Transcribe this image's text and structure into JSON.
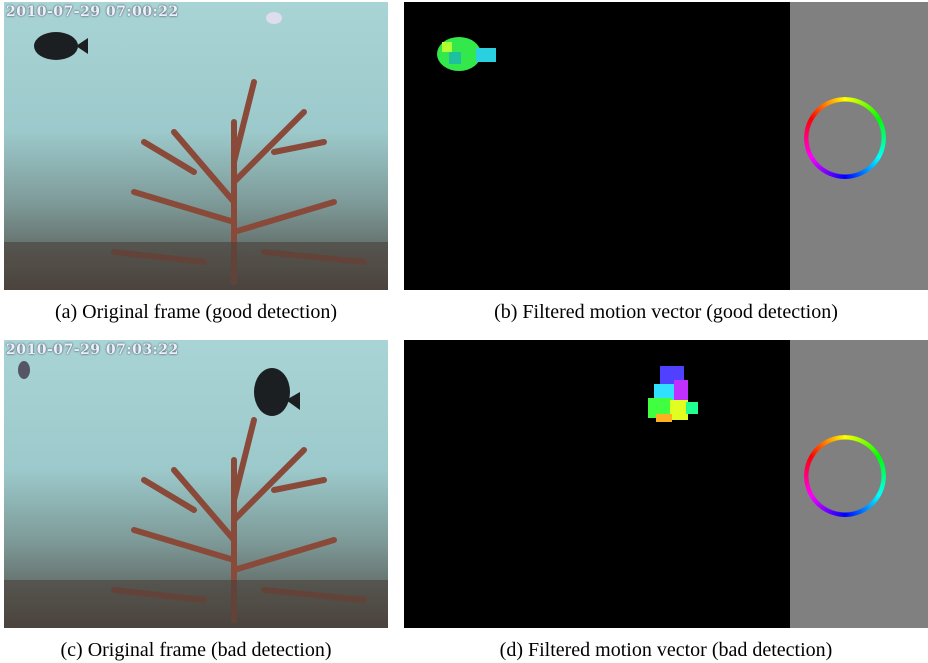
{
  "panels": [
    {
      "timestamp": "2010-07-29 07:00:22",
      "caption": "(a) Original frame (good detection)"
    },
    {
      "caption": "(b) Filtered motion vector (good detection)"
    },
    {
      "timestamp": "2010-07-29 07:03:22",
      "caption": "(c) Original frame (bad detection)"
    },
    {
      "caption": "(d) Filtered motion vector (bad detection)"
    }
  ]
}
